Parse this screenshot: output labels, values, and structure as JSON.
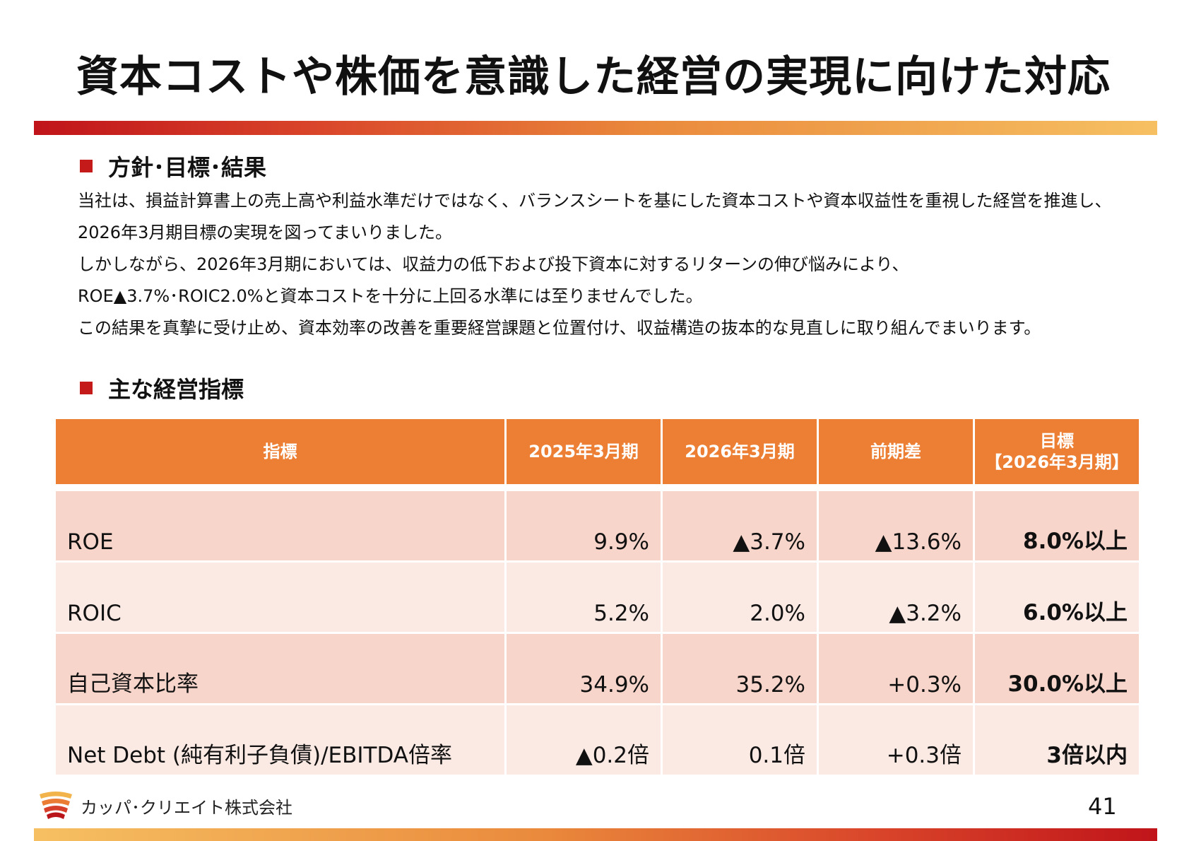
{
  "title": "資本コストや株価を意識した経営の実現に向けた対応",
  "section1": {
    "heading": "方針･目標･結果",
    "lines": [
      "当社は、損益計算書上の売上高や利益水準だけではなく、バランスシートを基にした資本コストや資本収益性を重視した経営を推進し、",
      "2026年3月期目標の実現を図ってまいりました。",
      "しかしながら、2026年3月期においては、収益力の低下および投下資本に対するリターンの伸び悩みにより、",
      "ROE▲3.7%･ROIC2.0%と資本コストを十分に上回る水準には至りませんでした。",
      "この結果を真摯に受け止め、資本効率の改善を重要経営課題と位置付け、収益構造の抜本的な見直しに取り組んでまいります。"
    ]
  },
  "section2": {
    "heading": "主な経営指標",
    "table": {
      "headers": {
        "indicator": "指標",
        "fy2025": "2025年3月期",
        "fy2026": "2026年3月期",
        "diff": "前期差",
        "target_line1": "目標",
        "target_line2": "【2026年3月期】"
      },
      "rows": [
        {
          "name": "ROE",
          "fy2025": "9.9%",
          "fy2026": "▲3.7%",
          "diff": "▲13.6%",
          "target": "8.0%以上"
        },
        {
          "name": "ROIC",
          "fy2025": "5.2%",
          "fy2026": "2.0%",
          "diff": "▲3.2%",
          "target": "6.0%以上"
        },
        {
          "name": "自己資本比率",
          "fy2025": "34.9%",
          "fy2026": "35.2%",
          "diff": "+0.3%",
          "target": "30.0%以上"
        },
        {
          "name": "Net Debt (純有利子負債)/EBITDA倍率",
          "fy2025": "▲0.2倍",
          "fy2026": "0.1倍",
          "diff": "+0.3倍",
          "target": "3倍以内"
        }
      ]
    }
  },
  "footer": {
    "company": "カッパ･クリエイト株式会社",
    "page": "41"
  },
  "colors": {
    "accent": "#ec7f34",
    "row_dark": "#f7d5ca",
    "row_light": "#fbe9e4",
    "bullet": "#c41a1a"
  }
}
